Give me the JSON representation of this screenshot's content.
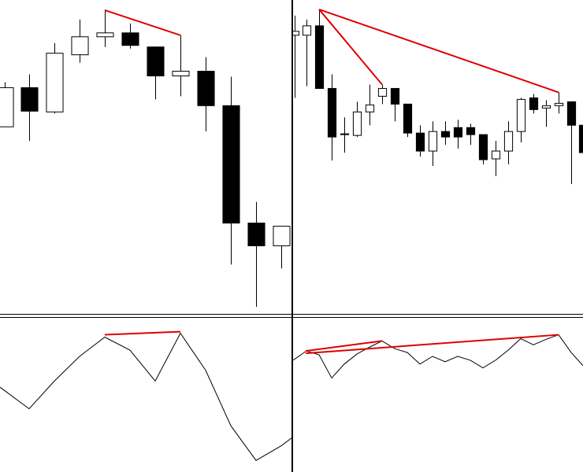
{
  "chart_data": [
    {
      "type": "candlestick",
      "color_up": "#ffffff",
      "color_down": "#000000",
      "trend_color": "#e00000",
      "xlim": [
        0,
        370
      ],
      "ylim": [
        0,
        400
      ],
      "x": [
        6,
        37,
        69,
        101,
        133,
        165,
        197,
        229,
        261,
        293,
        325,
        357
      ],
      "open": [
        238,
        288,
        257,
        330,
        353,
        358,
        340,
        303,
        309,
        265,
        115,
        86
      ],
      "close": [
        288,
        258,
        332,
        353,
        358,
        342,
        303,
        309,
        265,
        115,
        86,
        111
      ],
      "high": [
        295,
        305,
        345,
        375,
        388,
        370,
        340,
        355,
        327,
        302,
        142,
        111
      ],
      "low": [
        238,
        220,
        255,
        320,
        340,
        338,
        273,
        277,
        232,
        62,
        8,
        57
      ],
      "trendlines": [
        {
          "x": [
            133,
            229
          ],
          "y": [
            387,
            355
          ]
        }
      ]
    },
    {
      "type": "candlestick",
      "color_up": "#ffffff",
      "color_down": "#000000",
      "trend_color": "#e00000",
      "xlim": [
        372,
        740
      ],
      "ylim": [
        0,
        400
      ],
      "x": [
        374,
        389,
        405,
        421,
        437,
        453,
        469,
        485,
        501,
        517,
        533,
        549,
        565,
        581,
        597,
        613,
        629,
        645,
        661,
        677,
        693,
        709,
        725,
        740
      ],
      "open": [
        355,
        355,
        367,
        287,
        228,
        227,
        257,
        277,
        287,
        267,
        230,
        207,
        232,
        237,
        237,
        228,
        197,
        207,
        232,
        275,
        262,
        265,
        270,
        240
      ],
      "close": [
        360,
        367,
        287,
        225,
        229,
        257,
        266,
        287,
        267,
        230,
        207,
        232,
        225,
        225,
        228,
        196,
        207,
        232,
        273,
        260,
        265,
        268,
        240,
        205
      ],
      "high": [
        380,
        375,
        388,
        305,
        250,
        270,
        292,
        292,
        287,
        267,
        240,
        245,
        245,
        247,
        242,
        228,
        220,
        245,
        275,
        280,
        272,
        282,
        270,
        240
      ],
      "low": [
        275,
        290,
        287,
        195,
        205,
        225,
        240,
        267,
        245,
        225,
        200,
        188,
        215,
        210,
        215,
        190,
        175,
        190,
        218,
        255,
        238,
        255,
        165,
        200
      ],
      "trendlines": [
        {
          "x": [
            405,
            485
          ],
          "y": [
            388,
            292
          ]
        },
        {
          "x": [
            405,
            709
          ],
          "y": [
            388,
            282
          ]
        }
      ]
    },
    {
      "type": "line",
      "color": "#000000",
      "trend_color": "#e00000",
      "xlim": [
        0,
        370
      ],
      "ylim": [
        0,
        200
      ],
      "x": [
        0,
        37,
        69,
        101,
        133,
        165,
        197,
        229,
        261,
        293,
        325,
        357,
        370
      ],
      "values": [
        110,
        82,
        118,
        150,
        175,
        158,
        118,
        180,
        132,
        60,
        15,
        34,
        44
      ],
      "trendlines": [
        {
          "x": [
            133,
            229
          ],
          "y": [
            178,
            182
          ]
        }
      ]
    },
    {
      "type": "line",
      "color": "#000000",
      "trend_color": "#e00000",
      "xlim": [
        372,
        740
      ],
      "ylim": [
        0,
        200
      ],
      "x": [
        372,
        389,
        405,
        421,
        437,
        453,
        469,
        485,
        501,
        517,
        533,
        549,
        565,
        581,
        597,
        613,
        629,
        645,
        661,
        677,
        693,
        709,
        725,
        740
      ],
      "values": [
        145,
        157,
        152,
        122,
        140,
        153,
        162,
        170,
        160,
        155,
        140,
        150,
        143,
        150,
        145,
        135,
        145,
        158,
        173,
        165,
        172,
        178,
        155,
        138
      ],
      "trendlines": [
        {
          "x": [
            388,
            485
          ],
          "y": [
            157,
            170
          ]
        },
        {
          "x": [
            388,
            709
          ],
          "y": [
            154,
            178
          ]
        }
      ]
    }
  ]
}
